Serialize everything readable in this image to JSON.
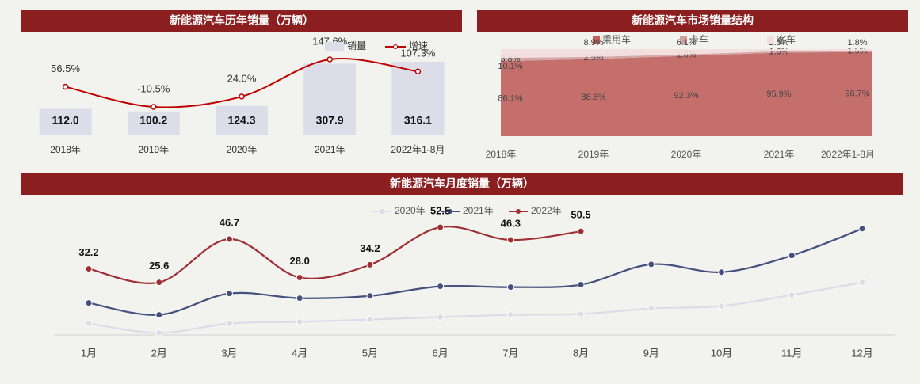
{
  "chart_data": [
    {
      "type": "bar_line",
      "title": "新能源汽车历年销量（万辆）",
      "categories": [
        "2018年",
        "2019年",
        "2020年",
        "2021年",
        "2022年1-8月"
      ],
      "series": [
        {
          "name": "销量",
          "color": "#dcdde8",
          "values": [
            112.0,
            100.2,
            124.3,
            307.9,
            316.1
          ],
          "value_labels": [
            "112.0",
            "100.2",
            "124.3",
            "307.9",
            "316.1"
          ]
        },
        {
          "name": "增速",
          "color": "#c00000",
          "type": "line",
          "values": [
            56.5,
            -10.5,
            24.0,
            147.6,
            107.3
          ],
          "value_labels": [
            "56.5%",
            "-10.5%",
            "24.0%",
            "147.6%",
            "107.3%"
          ]
        }
      ]
    },
    {
      "type": "stacked_area",
      "title": "新能源汽车市场销量结构",
      "categories": [
        "2018年",
        "2019年",
        "2020年",
        "2021年",
        "2022年1-8月"
      ],
      "series": [
        {
          "name": "乘用车",
          "color": "#c0605d",
          "values": [
            86.1,
            88.6,
            92.3,
            95.9,
            96.7
          ],
          "value_labels": [
            "86.1%",
            "88.6%",
            "92.3%",
            "95.9%",
            "96.7%"
          ]
        },
        {
          "name": "卡车",
          "color": "#cfa09e",
          "values": [
            3.8,
            2.5,
            1.6,
            1.6,
            1.5
          ],
          "value_labels": [
            "3.8%",
            "2.5%",
            "1.6%",
            "1.6%",
            "1.5%"
          ]
        },
        {
          "name": "客车",
          "color": "#f3dddc",
          "values": [
            10.1,
            8.9,
            6.1,
            2.5,
            1.8
          ],
          "value_labels": [
            "10.1%",
            "8.9%",
            "6.1%",
            "2.5%",
            "1.8%"
          ]
        }
      ]
    },
    {
      "type": "line",
      "title": "新能源汽车月度销量（万辆）",
      "categories": [
        "1月",
        "2月",
        "3月",
        "4月",
        "5月",
        "6月",
        "7月",
        "8月",
        "9月",
        "10月",
        "11月",
        "12月"
      ],
      "series": [
        {
          "name": "2020年",
          "color": "#dcdce8",
          "values": [
            5.6,
            1.0,
            5.6,
            6.4,
            7.5,
            8.7,
            9.8,
            10.2,
            12.9,
            14.1,
            19.5,
            25.6
          ]
        },
        {
          "name": "2021年",
          "color": "#44507e",
          "values": [
            15.6,
            9.8,
            20.2,
            17.9,
            19.0,
            23.7,
            23.3,
            24.5,
            34.4,
            30.6,
            38.7,
            51.8
          ]
        },
        {
          "name": "2022年",
          "color": "#9e3034",
          "values": [
            32.2,
            25.6,
            46.7,
            28.0,
            34.2,
            52.5,
            46.3,
            50.5,
            null,
            null,
            null,
            null
          ],
          "value_labels": [
            "32.2",
            "25.6",
            "46.7",
            "28.0",
            "34.2",
            "52.5",
            "46.3",
            "50.5",
            null,
            null,
            null,
            null
          ]
        }
      ]
    }
  ]
}
